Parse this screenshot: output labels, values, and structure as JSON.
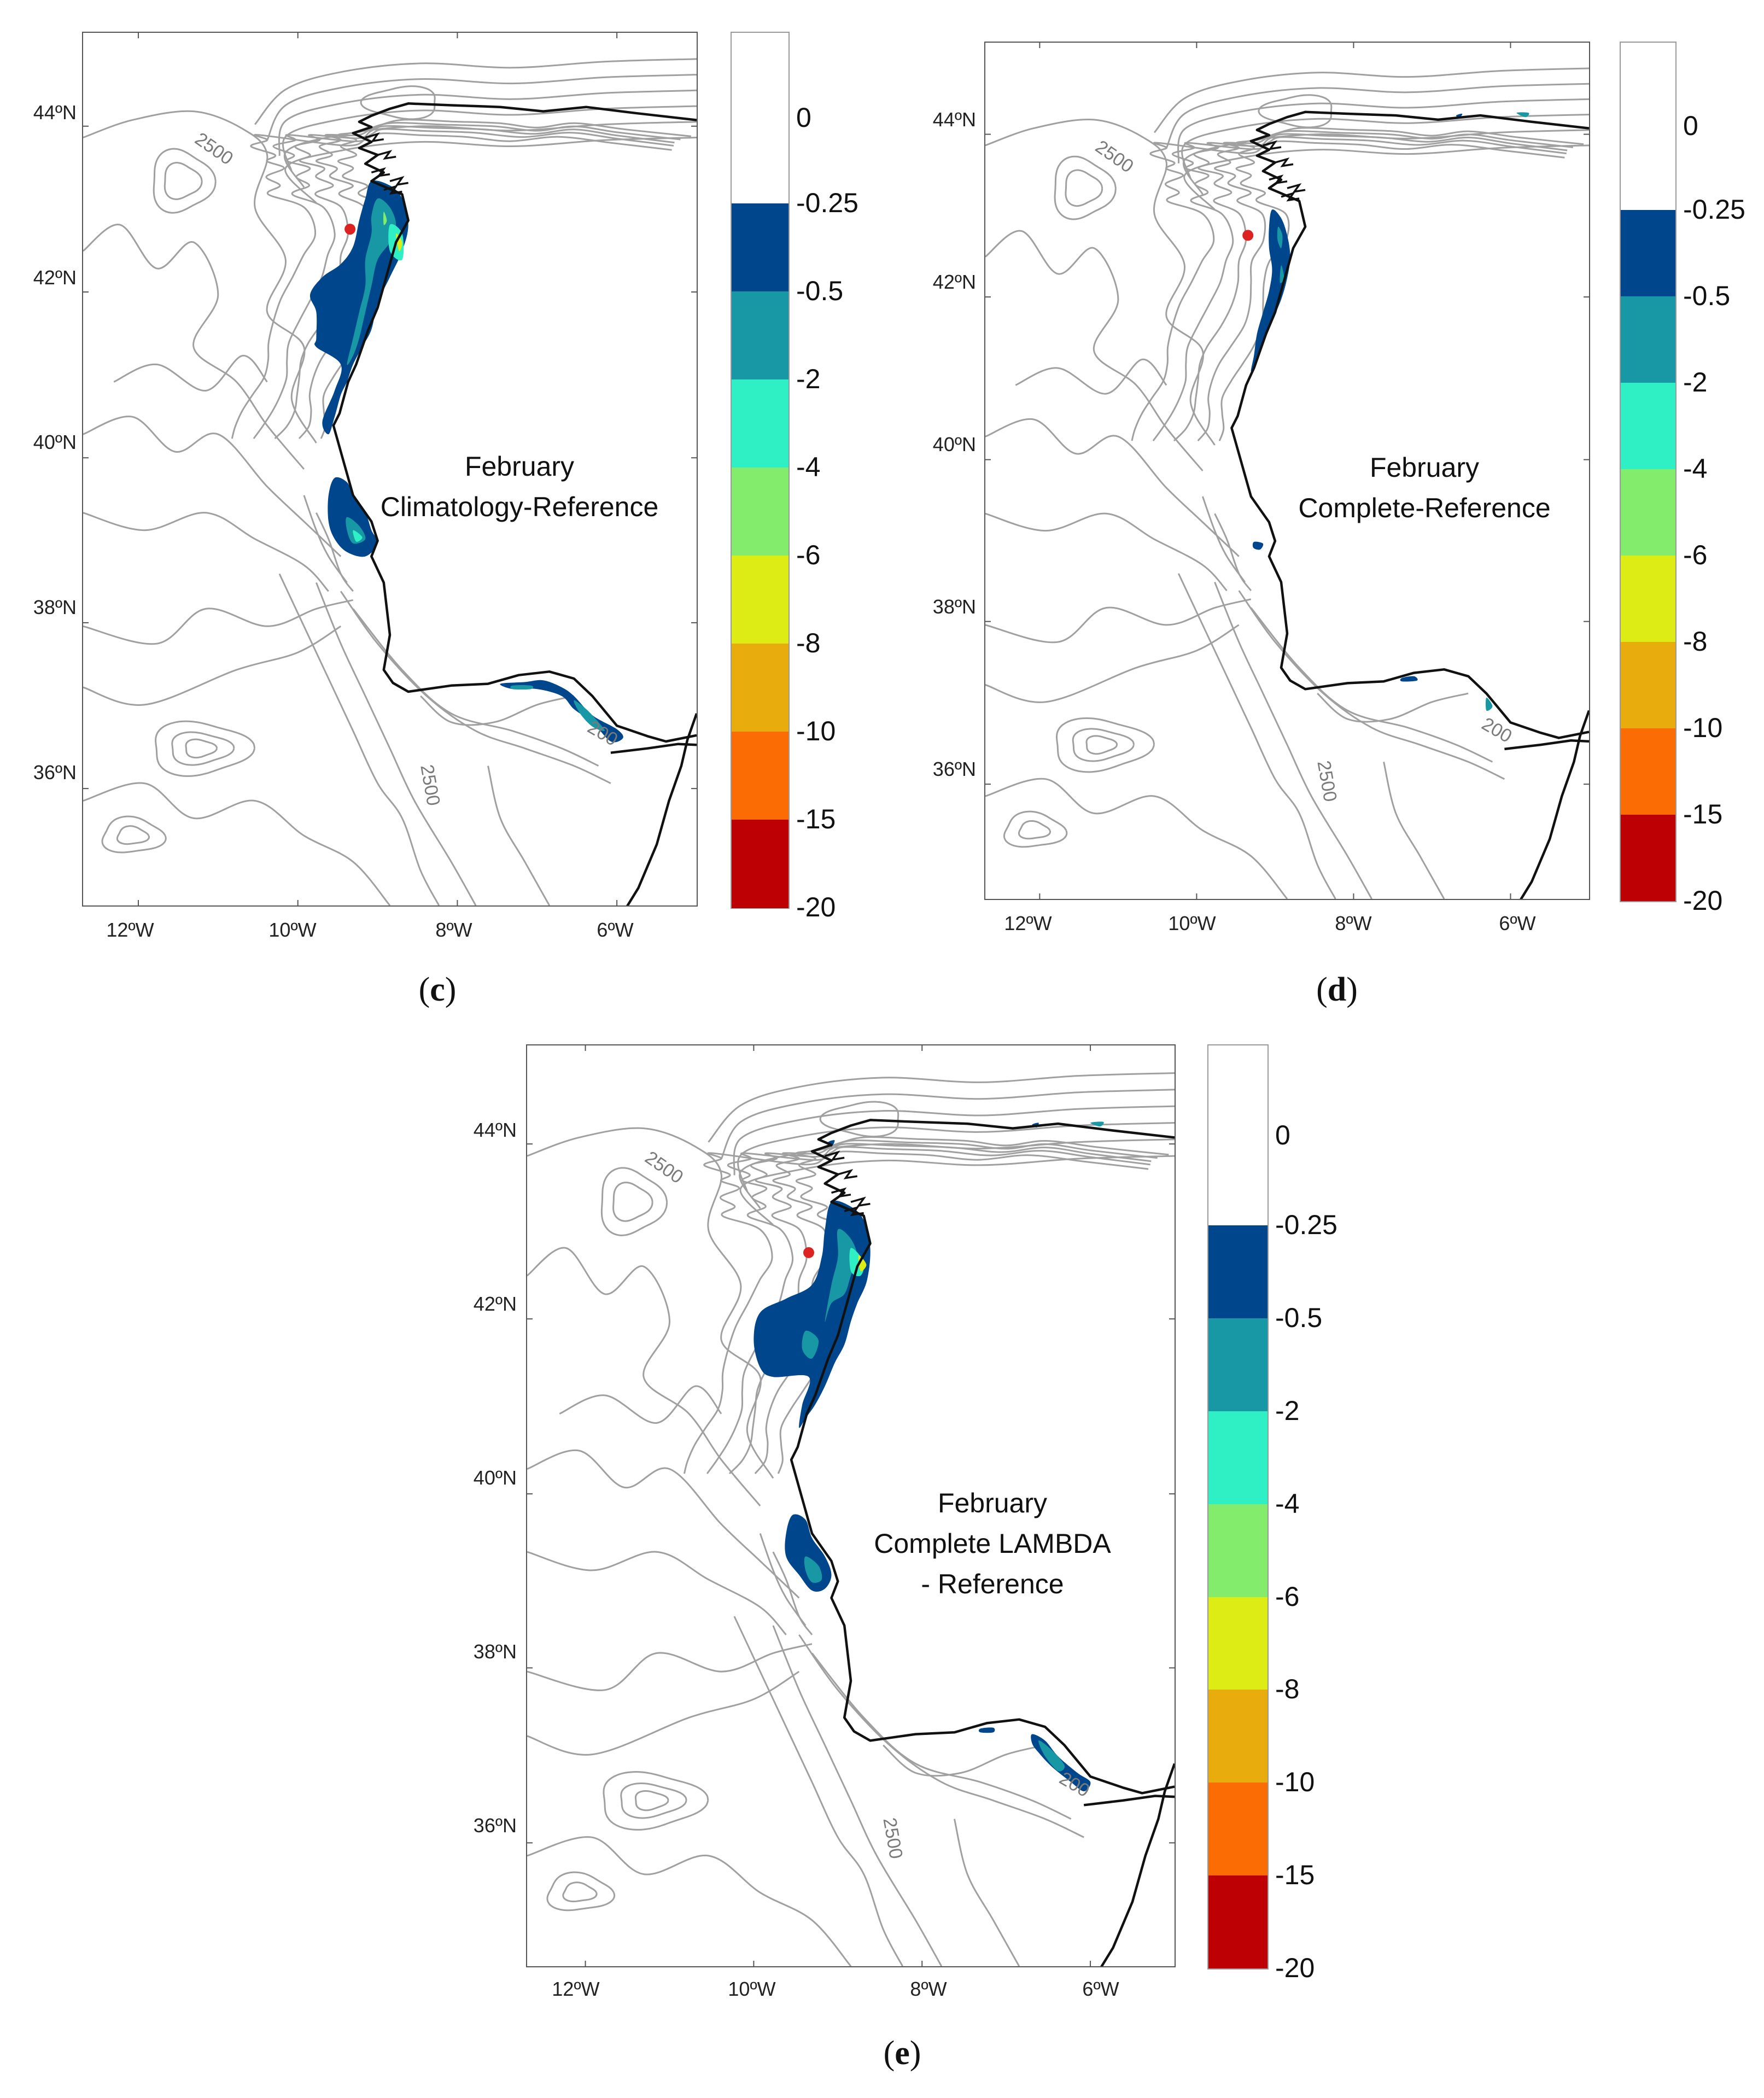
{
  "panels": [
    {
      "letter": "c",
      "title_lines": [
        "February",
        "Climatology-Reference"
      ],
      "lat_labels": [
        "44ºN",
        "42ºN",
        "40ºN",
        "38ºN",
        "36ºN"
      ],
      "lon_labels": [
        "12ºW",
        "10ºW",
        "8ºW",
        "6ºW"
      ],
      "contour_labels": [
        "2500",
        "2500",
        "200"
      ],
      "variant": "climatology"
    },
    {
      "letter": "d",
      "title_lines": [
        "February",
        "Complete-Reference"
      ],
      "lat_labels": [
        "44ºN",
        "42ºN",
        "40ºN",
        "38ºN",
        "36ºN"
      ],
      "lon_labels": [
        "12ºW",
        "10ºW",
        "8ºW",
        "6ºW"
      ],
      "contour_labels": [
        "2500",
        "2500",
        "200"
      ],
      "variant": "complete"
    },
    {
      "letter": "e",
      "title_lines": [
        "February",
        "Complete LAMBDA",
        "- Reference"
      ],
      "lat_labels": [
        "44ºN",
        "42ºN",
        "40ºN",
        "38ºN",
        "36ºN"
      ],
      "lon_labels": [
        "12ºW",
        "10ºW",
        "8ºW",
        "6ºW"
      ],
      "contour_labels": [
        "2500",
        "2500",
        "200"
      ],
      "variant": "lambda"
    }
  ],
  "colorbar": {
    "labels": [
      "0",
      "-0.25",
      "-0.5",
      "-2",
      "-4",
      "-6",
      "-8",
      "-10",
      "-15",
      "-20"
    ],
    "colors": [
      "#ffffff",
      "#00468c",
      "#1898a4",
      "#2ef0c4",
      "#84ec6c",
      "#dcec14",
      "#e8ac0c",
      "#fc6c04",
      "#bc0004"
    ]
  },
  "map_colors": {
    "coast": "#111111",
    "bathymetry": "#a0a0a0",
    "marker": "#dd2222"
  }
}
